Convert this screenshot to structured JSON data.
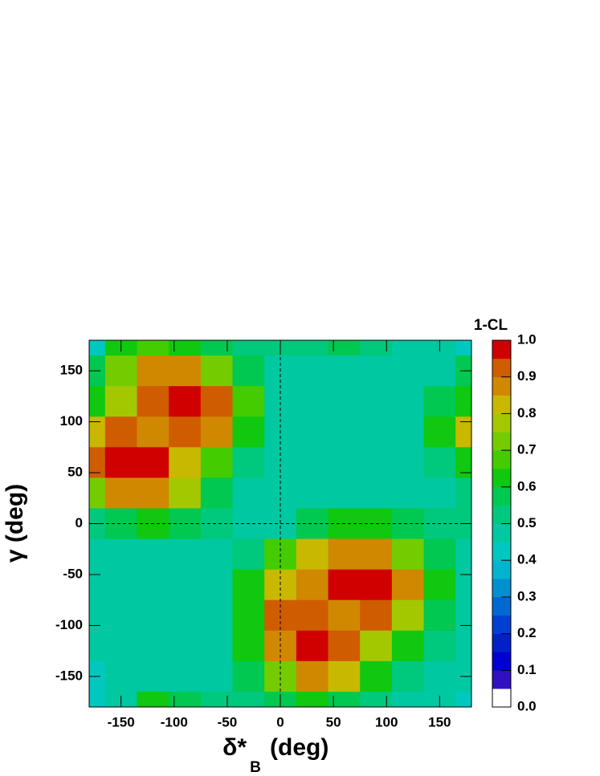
{
  "chart_data": {
    "type": "contour",
    "x_label": "δ*",
    "x_label_sub": "B",
    "x_label_unit": "(deg)",
    "y_label": "γ (deg)",
    "colorbar_title": "1-CL",
    "x": [
      -180,
      -150,
      -120,
      -90,
      -60,
      -30,
      0,
      30,
      60,
      90,
      120,
      150,
      180
    ],
    "y": [
      180,
      150,
      120,
      90,
      60,
      30,
      0,
      -30,
      -60,
      -90,
      -120,
      -150,
      -180
    ],
    "z": [
      [
        0.4,
        0.6,
        0.65,
        0.6,
        0.55,
        0.5,
        0.5,
        0.5,
        0.55,
        0.5,
        0.45,
        0.45,
        0.4
      ],
      [
        0.55,
        0.7,
        0.85,
        0.85,
        0.7,
        0.55,
        0.45,
        0.45,
        0.45,
        0.45,
        0.45,
        0.45,
        0.55
      ],
      [
        0.6,
        0.75,
        0.9,
        1.0,
        0.9,
        0.65,
        0.45,
        0.45,
        0.45,
        0.45,
        0.45,
        0.55,
        0.6
      ],
      [
        0.8,
        0.9,
        0.85,
        0.9,
        0.85,
        0.6,
        0.45,
        0.45,
        0.45,
        0.45,
        0.45,
        0.6,
        0.8
      ],
      [
        0.9,
        1.0,
        0.95,
        0.8,
        0.65,
        0.5,
        0.45,
        0.45,
        0.45,
        0.45,
        0.45,
        0.5,
        0.6
      ],
      [
        0.7,
        0.85,
        0.85,
        0.75,
        0.55,
        0.45,
        0.45,
        0.45,
        0.45,
        0.45,
        0.45,
        0.45,
        0.5
      ],
      [
        0.5,
        0.55,
        0.6,
        0.55,
        0.5,
        0.45,
        0.45,
        0.55,
        0.6,
        0.6,
        0.55,
        0.5,
        0.5
      ],
      [
        0.45,
        0.45,
        0.45,
        0.45,
        0.45,
        0.5,
        0.65,
        0.8,
        0.85,
        0.85,
        0.7,
        0.55,
        0.45
      ],
      [
        0.45,
        0.45,
        0.45,
        0.45,
        0.45,
        0.6,
        0.8,
        0.85,
        0.95,
        1.0,
        0.85,
        0.6,
        0.45
      ],
      [
        0.45,
        0.45,
        0.45,
        0.45,
        0.45,
        0.6,
        0.9,
        0.9,
        0.85,
        0.9,
        0.75,
        0.55,
        0.45
      ],
      [
        0.45,
        0.45,
        0.45,
        0.45,
        0.45,
        0.6,
        0.85,
        1.0,
        0.9,
        0.75,
        0.6,
        0.5,
        0.45
      ],
      [
        0.4,
        0.45,
        0.45,
        0.45,
        0.45,
        0.55,
        0.7,
        0.85,
        0.8,
        0.6,
        0.5,
        0.45,
        0.45
      ],
      [
        0.4,
        0.45,
        0.6,
        0.55,
        0.5,
        0.5,
        0.55,
        0.6,
        0.55,
        0.5,
        0.45,
        0.45,
        0.4
      ]
    ],
    "xlim": [
      -180,
      180
    ],
    "ylim": [
      -180,
      180
    ],
    "xticks": [
      -150,
      -100,
      -50,
      0,
      50,
      100,
      150
    ],
    "yticks": [
      -150,
      -100,
      -50,
      0,
      50,
      100,
      150
    ],
    "zlim": [
      0,
      1
    ],
    "zticks": [
      {
        "value": 0,
        "label": "0.0"
      },
      {
        "value": 0.1,
        "label": "0.1"
      },
      {
        "value": 0.2,
        "label": "0.2"
      },
      {
        "value": 0.3,
        "label": "0.3"
      },
      {
        "value": 0.4,
        "label": "0.4"
      },
      {
        "value": 0.5,
        "label": "0.5"
      },
      {
        "value": 0.6,
        "label": "0.6"
      },
      {
        "value": 0.7,
        "label": "0.7"
      },
      {
        "value": 0.8,
        "label": "0.8"
      },
      {
        "value": 0.9,
        "label": "0.9"
      },
      {
        "value": 1,
        "label": "1.0"
      }
    ],
    "colors": [
      "#ffffff",
      "#3010c0",
      "#0000d0",
      "#0020c8",
      "#0040d0",
      "#0068d0",
      "#0090d0",
      "#00b4d0",
      "#00c8c0",
      "#00c8a0",
      "#00c87c",
      "#00c850",
      "#10c810",
      "#44cc00",
      "#74cc00",
      "#a4c800",
      "#c8b800",
      "#d08800",
      "#d05c00",
      "#d00000"
    ],
    "hlines": [
      0
    ],
    "vlines": [
      0
    ]
  }
}
